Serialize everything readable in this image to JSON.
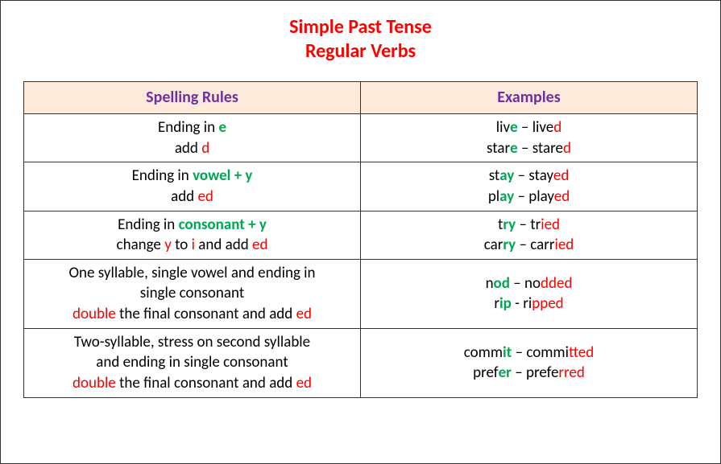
{
  "title_line1": "Simple Past Tense",
  "title_line2": "Regular Verbs",
  "columns": {
    "rules": "Spelling Rules",
    "examples": "Examples"
  },
  "rows": [
    {
      "rule": [
        [
          {
            "t": "Ending in "
          },
          {
            "t": "e",
            "c": "g"
          }
        ],
        [
          {
            "t": "add "
          },
          {
            "t": "d",
            "c": "r"
          }
        ]
      ],
      "ex": [
        [
          {
            "t": "liv"
          },
          {
            "t": "e",
            "c": "g"
          },
          {
            "t": " – live"
          },
          {
            "t": "d",
            "c": "r"
          }
        ],
        [
          {
            "t": "star"
          },
          {
            "t": "e",
            "c": "g"
          },
          {
            "t": " – stare"
          },
          {
            "t": "d",
            "c": "r"
          }
        ]
      ]
    },
    {
      "rule": [
        [
          {
            "t": "Ending in "
          },
          {
            "t": "vowel + y",
            "c": "g"
          }
        ],
        [
          {
            "t": "add "
          },
          {
            "t": "ed",
            "c": "r"
          }
        ]
      ],
      "ex": [
        [
          {
            "t": "st"
          },
          {
            "t": "ay",
            "c": "g"
          },
          {
            "t": " – stay"
          },
          {
            "t": "ed",
            "c": "r"
          }
        ],
        [
          {
            "t": "pl"
          },
          {
            "t": "ay",
            "c": "g"
          },
          {
            "t": " – play"
          },
          {
            "t": "ed",
            "c": "r"
          }
        ]
      ]
    },
    {
      "rule": [
        [
          {
            "t": "Ending in "
          },
          {
            "t": "consonant + y",
            "c": "g"
          }
        ],
        [
          {
            "t": "change "
          },
          {
            "t": "y",
            "c": "r"
          },
          {
            "t": " to "
          },
          {
            "t": "i",
            "c": "r"
          },
          {
            "t": " and add "
          },
          {
            "t": "ed",
            "c": "r"
          }
        ]
      ],
      "ex": [
        [
          {
            "t": "t"
          },
          {
            "t": "ry",
            "c": "g"
          },
          {
            "t": " – tr"
          },
          {
            "t": "ied",
            "c": "r"
          }
        ],
        [
          {
            "t": "car"
          },
          {
            "t": "ry",
            "c": "g"
          },
          {
            "t": " – carr"
          },
          {
            "t": "ied",
            "c": "r"
          }
        ]
      ]
    },
    {
      "rule": [
        [
          {
            "t": "One syllable, single vowel and ending in"
          }
        ],
        [
          {
            "t": "single consonant"
          }
        ],
        [
          {
            "t": "double",
            "c": "r"
          },
          {
            "t": " the final consonant and add "
          },
          {
            "t": "ed",
            "c": "r"
          }
        ]
      ],
      "ex": [
        [
          {
            "t": "n"
          },
          {
            "t": "od",
            "c": "g"
          },
          {
            "t": " – no"
          },
          {
            "t": "dded",
            "c": "r"
          }
        ],
        [
          {
            "t": "r"
          },
          {
            "t": "ip",
            "c": "g"
          },
          {
            "t": " - ri"
          },
          {
            "t": "pped",
            "c": "r"
          }
        ]
      ]
    },
    {
      "rule": [
        [
          {
            "t": "Two-syllable, stress on second syllable"
          }
        ],
        [
          {
            "t": "and ending in single consonant"
          }
        ],
        [
          {
            "t": "double",
            "c": "r"
          },
          {
            "t": " the final consonant and add "
          },
          {
            "t": "ed",
            "c": "r"
          }
        ]
      ],
      "ex": [
        [
          {
            "t": "comm"
          },
          {
            "t": "it",
            "c": "g"
          },
          {
            "t": " – commi"
          },
          {
            "t": "tted",
            "c": "r"
          }
        ],
        [
          {
            "t": "pref"
          },
          {
            "t": "er",
            "c": "g"
          },
          {
            "t": " – prefe"
          },
          {
            "t": "rred",
            "c": "r"
          }
        ]
      ]
    }
  ],
  "colors": {
    "title": "#ff0000",
    "header_bg": "#fdeada",
    "header_text": "#7030a0",
    "green": "#00a651",
    "red": "#ff0000",
    "border": "#333333"
  }
}
